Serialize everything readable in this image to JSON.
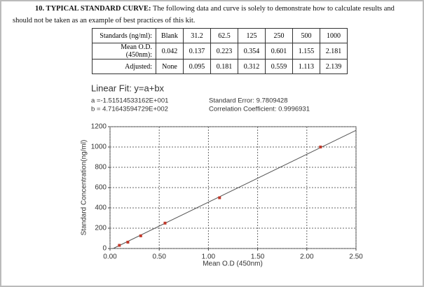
{
  "section": {
    "heading": "10. TYPICAL STANDARD CURVE:",
    "text": "The following data and curve is solely to demonstrate how to calculate results and should not be taken as an example of best practices of this kit."
  },
  "table": {
    "rows": [
      [
        "Standards (ng/ml):",
        "Blank",
        "31.2",
        "62.5",
        "125",
        "250",
        "500",
        "1000"
      ],
      [
        "Mean O.D.(450nm):",
        "0.042",
        "0.137",
        "0.223",
        "0.354",
        "0.601",
        "1.155",
        "2.181"
      ],
      [
        "Adjusted:",
        "None",
        "0.095",
        "0.181",
        "0.312",
        "0.559",
        "1.113",
        "2.139"
      ]
    ]
  },
  "chart_data": {
    "type": "scatter",
    "title": "Linear Fit: y=a+bx",
    "fit": {
      "a": {
        "value": -15.1514533162,
        "label": "a =-1.51514533162E+001"
      },
      "b": {
        "value": 471.643594729,
        "label": "b = 4.71643594729E+002"
      }
    },
    "standard_error": "Standard Error: 9.7809428",
    "correlation": "Correlation Coefficient: 0.9996931",
    "x_label": "Mean O.D (450nm)",
    "y_label": "Standard Concentration(ng/ml)",
    "x": [
      0.095,
      0.181,
      0.312,
      0.559,
      1.113,
      2.139
    ],
    "values": [
      31.2,
      62.5,
      125,
      250,
      500,
      1000
    ],
    "color": "#c0392b",
    "line_color": "#555555",
    "xlim": [
      0,
      2.5
    ],
    "ylim": [
      0,
      1200
    ],
    "xticks": [
      {
        "value": 0,
        "label": "0.00"
      },
      {
        "value": 0.5,
        "label": "0.50"
      },
      {
        "value": 1,
        "label": "1.00"
      },
      {
        "value": 1.5,
        "label": "1.50"
      },
      {
        "value": 2,
        "label": "2.00"
      },
      {
        "value": 2.5,
        "label": "2.50"
      }
    ],
    "yticks": [
      0,
      200,
      400,
      600,
      800,
      1000,
      1200
    ],
    "grid": true
  }
}
